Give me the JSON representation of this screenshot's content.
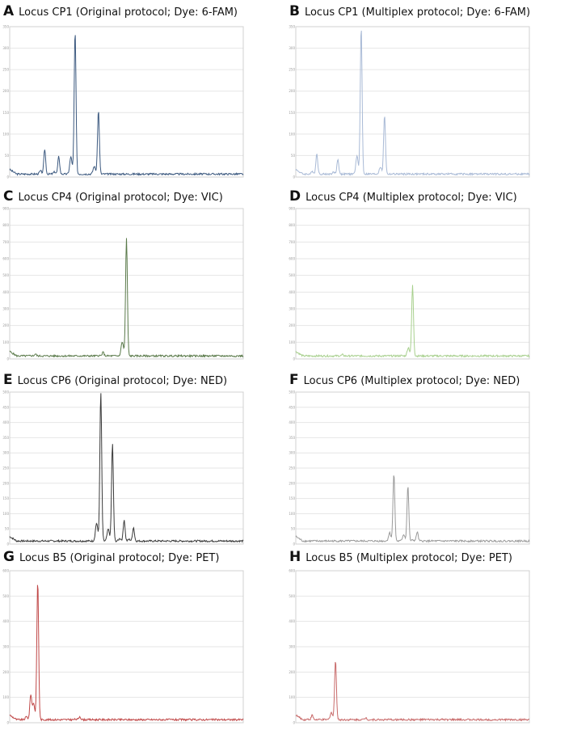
{
  "figure": {
    "panels": [
      {
        "letter": "A",
        "title": "Locus CP1 (Original protocol; Dye: 6-FAM)"
      },
      {
        "letter": "B",
        "title": "Locus CP1 (Multiplex protocol; Dye: 6-FAM)"
      },
      {
        "letter": "C",
        "title": "Locus CP4 (Original protocol; Dye: VIC)"
      },
      {
        "letter": "D",
        "title": "Locus CP4 (Multiplex protocol; Dye: VIC)"
      },
      {
        "letter": "E",
        "title": "Locus CP6 (Original protocol; Dye: NED)"
      },
      {
        "letter": "F",
        "title": "Locus CP6 (Multiplex protocol; Dye: NED)"
      },
      {
        "letter": "G",
        "title": "Locus B5 (Original protocol; Dye: PET)"
      },
      {
        "letter": "H",
        "title": "Locus B5 (Multiplex protocol; Dye: PET)"
      }
    ]
  },
  "chart_data": [
    {
      "type": "line",
      "title": "Locus CP1 (Original protocol; Dye: 6-FAM)",
      "color": "#3d5a80",
      "grid": true,
      "ylim": [
        0,
        350
      ],
      "yticks": [
        0,
        50,
        100,
        150,
        200,
        250,
        300,
        350
      ],
      "peaks": [
        {
          "x": 15,
          "y": 65
        },
        {
          "x": 21,
          "y": 48
        },
        {
          "x": 28,
          "y": 340
        },
        {
          "x": 38,
          "y": 155
        }
      ]
    },
    {
      "type": "line",
      "title": "Locus CP1 (Multiplex protocol; Dye: 6-FAM)",
      "color": "#a9bad6",
      "grid": true,
      "ylim": [
        0,
        350
      ],
      "yticks": [
        0,
        50,
        100,
        150,
        200,
        250,
        300,
        350
      ],
      "peaks": [
        {
          "x": 9,
          "y": 55
        },
        {
          "x": 18,
          "y": 42
        },
        {
          "x": 28,
          "y": 350
        },
        {
          "x": 38,
          "y": 145
        }
      ]
    },
    {
      "type": "line",
      "title": "Locus CP4 (Original protocol; Dye: VIC)",
      "color": "#5a7a4a",
      "grid": true,
      "ylim": [
        0,
        900
      ],
      "yticks": [
        0,
        100,
        200,
        300,
        400,
        500,
        600,
        700,
        800,
        900
      ],
      "peaks": [
        {
          "x": 11,
          "y": 30
        },
        {
          "x": 40,
          "y": 40
        },
        {
          "x": 50,
          "y": 720
        }
      ]
    },
    {
      "type": "line",
      "title": "Locus CP4 (Multiplex protocol; Dye: VIC)",
      "color": "#a8d08e",
      "grid": true,
      "ylim": [
        0,
        900
      ],
      "yticks": [
        0,
        100,
        200,
        300,
        400,
        500,
        600,
        700,
        800,
        900
      ],
      "peaks": [
        {
          "x": 20,
          "y": 25
        },
        {
          "x": 45,
          "y": 20
        },
        {
          "x": 50,
          "y": 440
        }
      ]
    },
    {
      "type": "line",
      "title": "Locus CP6 (Original protocol; Dye: NED)",
      "color": "#3a3a3a",
      "grid": true,
      "ylim": [
        0,
        500
      ],
      "yticks": [
        0,
        50,
        100,
        150,
        200,
        250,
        300,
        350,
        400,
        450,
        500
      ],
      "peaks": [
        {
          "x": 39,
          "y": 500
        },
        {
          "x": 44,
          "y": 330
        },
        {
          "x": 49,
          "y": 80
        },
        {
          "x": 53,
          "y": 55
        }
      ]
    },
    {
      "type": "line",
      "title": "Locus CP6 (Multiplex protocol; Dye: NED)",
      "color": "#9a9a9a",
      "grid": true,
      "ylim": [
        0,
        500
      ],
      "yticks": [
        0,
        50,
        100,
        150,
        200,
        250,
        300,
        350,
        400,
        450,
        500
      ],
      "peaks": [
        {
          "x": 42,
          "y": 235
        },
        {
          "x": 48,
          "y": 190
        },
        {
          "x": 52,
          "y": 40
        }
      ]
    },
    {
      "type": "line",
      "title": "Locus B5 (Original protocol; Dye: PET)",
      "color": "#c04848",
      "grid": true,
      "ylim": [
        0,
        600
      ],
      "yticks": [
        0,
        100,
        200,
        300,
        400,
        500,
        600
      ],
      "peaks": [
        {
          "x": 9,
          "y": 110
        },
        {
          "x": 12,
          "y": 560
        },
        {
          "x": 30,
          "y": 25
        }
      ]
    },
    {
      "type": "line",
      "title": "Locus B5 (Multiplex protocol; Dye: PET)",
      "color": "#c86a6a",
      "grid": true,
      "ylim": [
        0,
        600
      ],
      "yticks": [
        0,
        100,
        200,
        300,
        400,
        500,
        600
      ],
      "peaks": [
        {
          "x": 7,
          "y": 30
        },
        {
          "x": 17,
          "y": 250
        },
        {
          "x": 30,
          "y": 20
        }
      ]
    }
  ]
}
